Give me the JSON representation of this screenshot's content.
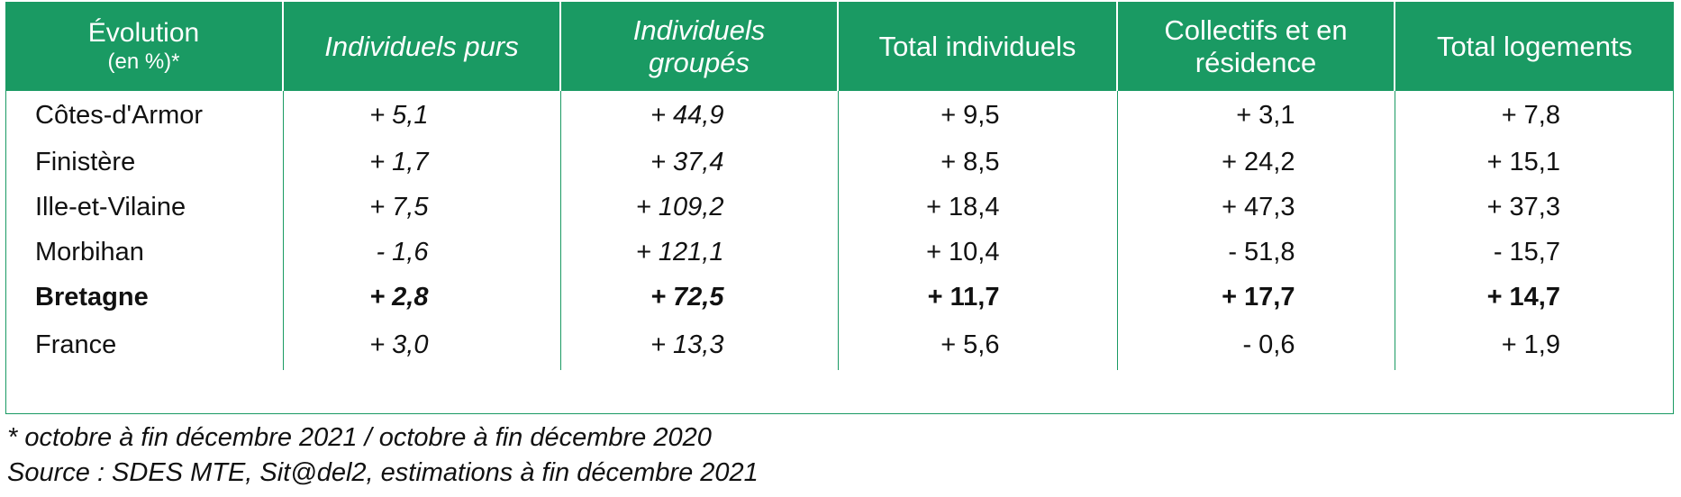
{
  "table": {
    "headers": [
      {
        "main": "Évolution",
        "sub": "(en %)*"
      },
      {
        "lines": [
          "Individuels purs"
        ]
      },
      {
        "lines": [
          "Individuels",
          "groupés"
        ]
      },
      {
        "lines": [
          "Total individuels"
        ]
      },
      {
        "lines": [
          "Collectifs et en",
          "résidence"
        ]
      },
      {
        "lines": [
          "Total logements"
        ]
      }
    ],
    "rows": [
      {
        "label": "Côtes-d'Armor",
        "values": [
          "+ 5,1",
          "+ 44,9",
          "+ 9,5",
          "+ 3,1",
          "+ 7,8"
        ]
      },
      {
        "label": "Finistère",
        "values": [
          "+ 1,7",
          "+ 37,4",
          "+ 8,5",
          "+ 24,2",
          "+ 15,1"
        ]
      },
      {
        "label": "Ille-et-Vilaine",
        "values": [
          "+ 7,5",
          "+ 109,2",
          "+ 18,4",
          "+ 47,3",
          "+ 37,3"
        ]
      },
      {
        "label": "Morbihan",
        "values": [
          "- 1,6",
          "+ 121,1",
          "+ 10,4",
          "- 51,8",
          "- 15,7"
        ]
      },
      {
        "label": "Bretagne",
        "values": [
          "+ 2,8",
          "+ 72,5",
          "+ 11,7",
          "+ 17,7",
          "+ 14,7"
        ],
        "bold": true
      },
      {
        "label": "France",
        "values": [
          "+ 3,0",
          "+ 13,3",
          "+ 5,6",
          "- 0,6",
          "+ 1,9"
        ]
      }
    ]
  },
  "notes": {
    "footnote": "* octobre à fin décembre 2021 / octobre à fin décembre 2020",
    "source": "Source : SDES MTE, Sit@del2, estimations à fin décembre 2021"
  },
  "colors": {
    "header_bg": "#1a9a63",
    "header_text": "#ffffff",
    "border": "#1a9a63"
  }
}
